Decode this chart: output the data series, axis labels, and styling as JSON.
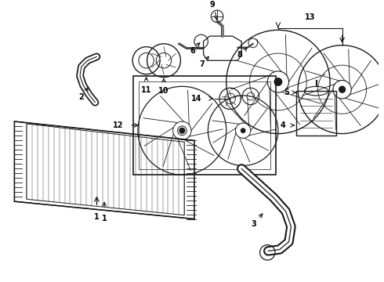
{
  "background_color": "#ffffff",
  "line_color": "#1a1a1a",
  "label_color": "#000000",
  "fig_width": 4.9,
  "fig_height": 3.6,
  "dpi": 100,
  "img_extent": [
    0,
    490,
    0,
    360
  ]
}
